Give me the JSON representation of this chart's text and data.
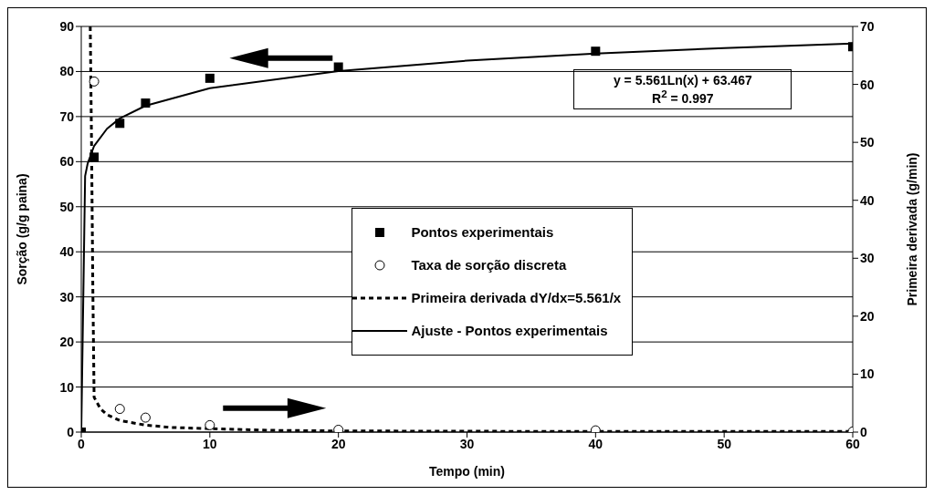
{
  "chart_data": {
    "type": "scatter",
    "xlabel": "Tempo (min)",
    "ylabel": "Sorção (g/g paina)",
    "y2label": "Primeira derivada (g/min)",
    "xlim": [
      0,
      60
    ],
    "xticks": [
      0,
      10,
      20,
      30,
      40,
      50,
      60
    ],
    "ylim": [
      0,
      90
    ],
    "yticks": [
      0,
      10,
      20,
      30,
      40,
      50,
      60,
      70,
      80,
      90
    ],
    "y2lim": [
      0,
      70
    ],
    "y2ticks": [
      0,
      10,
      20,
      30,
      40,
      50,
      60,
      70
    ],
    "grid": "y",
    "legend": "right",
    "annotations": [
      "y = 5.561Ln(x) + 63.467",
      "R$^{2}$ = 0.997"
    ],
    "series": [
      {
        "name": "Pontos experimentais",
        "marker": "square",
        "color": "#000000",
        "x": [
          0,
          1,
          3,
          5,
          10,
          20,
          40,
          60
        ],
        "values": [
          0,
          61,
          68.5,
          73,
          78.5,
          81,
          84.5,
          85.5
        ]
      },
      {
        "name": "Taxa de sorção discreta",
        "marker": "circle",
        "axis": "y2",
        "color": "#000000",
        "x": [
          1,
          3,
          5,
          10,
          20,
          40,
          60
        ],
        "values": [
          60.5,
          4,
          2.5,
          1.2,
          0.4,
          0.3,
          0.1
        ]
      },
      {
        "name": "Primeira derivada dY/dx=5.561/x",
        "type": "line",
        "line_style": "dashed",
        "axis": "y2",
        "color": "#000000",
        "x": [
          0.7,
          0.8,
          0.9,
          1,
          1.5,
          2,
          3,
          5,
          7,
          10,
          15,
          20,
          40,
          60
        ],
        "values": [
          70,
          50,
          25,
          6,
          4,
          3,
          2,
          1.2,
          0.8,
          0.6,
          0.3,
          0.2,
          0.1,
          0.1
        ]
      },
      {
        "name": "Ajuste - Pontos experimentais",
        "type": "line",
        "line_style": "solid",
        "color": "#000000",
        "x": [
          0,
          0.3,
          0.5,
          1,
          2,
          3,
          5,
          10,
          20,
          30,
          40,
          50,
          60
        ],
        "values": [
          0,
          56.8,
          59.6,
          63.5,
          67.3,
          69.6,
          72.4,
          76.3,
          80.1,
          82.4,
          84,
          85.2,
          86.2
        ]
      }
    ]
  }
}
